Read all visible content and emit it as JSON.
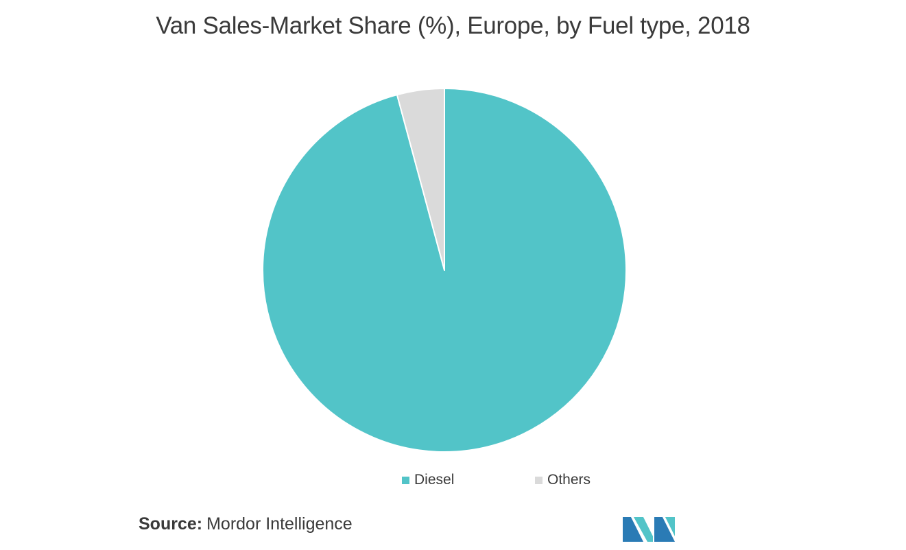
{
  "chart_data": {
    "type": "pie",
    "title": "Van Sales-Market Share (%), Europe, by Fuel type, 2018",
    "categories": [
      "Diesel",
      "Others"
    ],
    "values": [
      95.8,
      4.2
    ],
    "colors": [
      "#52c4c8",
      "#dadada"
    ],
    "legend_position": "bottom",
    "start_angle_deg": 0,
    "direction": "clockwise"
  },
  "source": {
    "label": "Source:",
    "text": "Mordor Intelligence"
  },
  "logo": {
    "icon": "mordor-intelligence-logo-icon",
    "colors": [
      "#2a7bb5",
      "#52c4c8"
    ]
  }
}
